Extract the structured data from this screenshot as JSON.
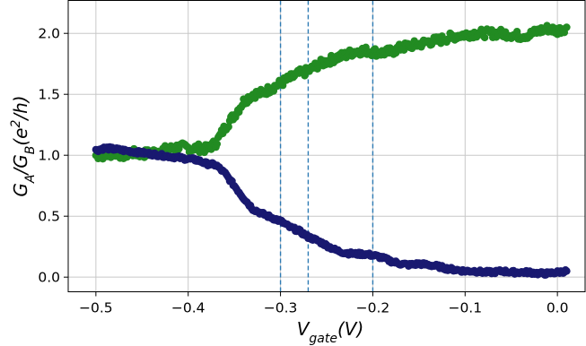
{
  "chart_data": {
    "type": "scatter",
    "xlabel": "V_gate(V)",
    "ylabel": "G_A/G_B(e^2/h)",
    "xlim": [
      -0.53,
      0.03
    ],
    "ylim": [
      -0.12,
      2.27
    ],
    "x_ticks": [
      -0.5,
      -0.4,
      -0.3,
      -0.2,
      -0.1,
      0.0
    ],
    "x_tick_labels": [
      "−0.5",
      "−0.4",
      "−0.3",
      "−0.2",
      "−0.1",
      "0.0"
    ],
    "y_ticks": [
      0.0,
      0.5,
      1.0,
      1.5,
      2.0
    ],
    "y_tick_labels": [
      "0.0",
      "0.5",
      "1.0",
      "1.5",
      "2.0"
    ],
    "grid": true,
    "vertical_lines": [
      -0.3,
      -0.27,
      -0.2
    ],
    "vertical_line_color": "#2e7bb4",
    "series": [
      {
        "color": "#228b22",
        "x": [
          -0.5,
          -0.49,
          -0.48,
          -0.47,
          -0.46,
          -0.45,
          -0.44,
          -0.43,
          -0.42,
          -0.41,
          -0.4,
          -0.39,
          -0.38,
          -0.37,
          -0.36,
          -0.35,
          -0.34,
          -0.33,
          -0.32,
          -0.31,
          -0.3,
          -0.29,
          -0.28,
          -0.27,
          -0.26,
          -0.25,
          -0.24,
          -0.23,
          -0.22,
          -0.21,
          -0.2,
          -0.19,
          -0.18,
          -0.17,
          -0.16,
          -0.15,
          -0.14,
          -0.13,
          -0.12,
          -0.11,
          -0.1,
          -0.09,
          -0.08,
          -0.07,
          -0.06,
          -0.05,
          -0.04,
          -0.03,
          -0.02,
          -0.01,
          0.0,
          0.01
        ],
        "y": [
          1.0,
          1.0,
          1.02,
          1.0,
          1.02,
          1.01,
          1.02,
          1.04,
          1.05,
          1.07,
          1.06,
          1.06,
          1.05,
          1.1,
          1.23,
          1.33,
          1.44,
          1.5,
          1.51,
          1.55,
          1.59,
          1.63,
          1.67,
          1.69,
          1.74,
          1.77,
          1.8,
          1.82,
          1.85,
          1.86,
          1.85,
          1.84,
          1.85,
          1.88,
          1.9,
          1.91,
          1.93,
          1.94,
          1.96,
          1.98,
          1.99,
          2.0,
          2.0,
          2.0,
          2.0,
          1.99,
          1.98,
          1.99,
          2.02,
          2.04,
          2.02,
          2.05
        ]
      },
      {
        "color": "#191970",
        "x": [
          -0.5,
          -0.49,
          -0.48,
          -0.47,
          -0.46,
          -0.45,
          -0.44,
          -0.43,
          -0.42,
          -0.41,
          -0.4,
          -0.39,
          -0.38,
          -0.37,
          -0.36,
          -0.35,
          -0.34,
          -0.33,
          -0.32,
          -0.31,
          -0.3,
          -0.29,
          -0.28,
          -0.27,
          -0.26,
          -0.25,
          -0.24,
          -0.23,
          -0.22,
          -0.21,
          -0.2,
          -0.19,
          -0.18,
          -0.17,
          -0.16,
          -0.15,
          -0.14,
          -0.13,
          -0.12,
          -0.11,
          -0.1,
          -0.09,
          -0.08,
          -0.07,
          -0.06,
          -0.05,
          -0.04,
          -0.03,
          -0.02,
          -0.01,
          0.0,
          0.01
        ],
        "y": [
          1.04,
          1.06,
          1.05,
          1.04,
          1.03,
          1.02,
          1.01,
          1.0,
          0.99,
          0.98,
          0.97,
          0.96,
          0.93,
          0.92,
          0.85,
          0.75,
          0.65,
          0.56,
          0.52,
          0.49,
          0.46,
          0.41,
          0.38,
          0.33,
          0.3,
          0.26,
          0.22,
          0.2,
          0.19,
          0.19,
          0.18,
          0.16,
          0.13,
          0.11,
          0.1,
          0.11,
          0.1,
          0.09,
          0.07,
          0.06,
          0.05,
          0.05,
          0.04,
          0.04,
          0.05,
          0.04,
          0.04,
          0.04,
          0.03,
          0.03,
          0.04,
          0.05
        ]
      }
    ]
  }
}
